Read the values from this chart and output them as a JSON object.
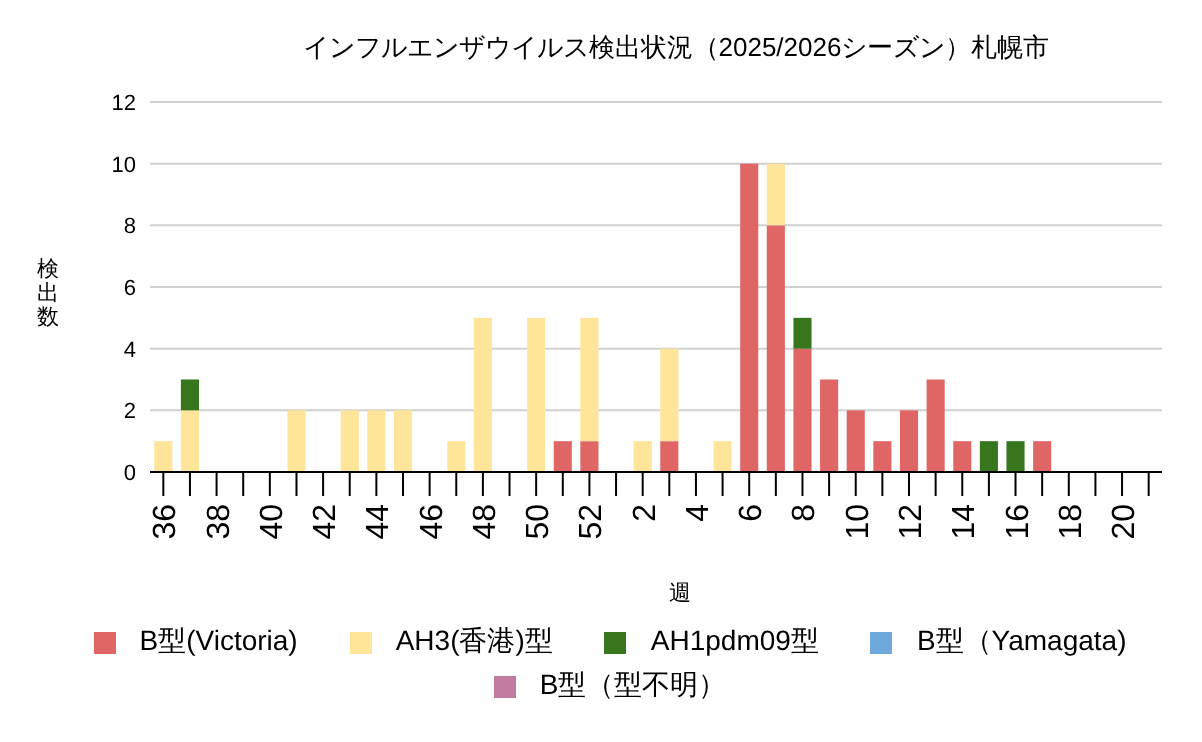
{
  "chart_data": {
    "type": "bar",
    "stacked": true,
    "title": "インフルエンザウイルス検出状況（2025/2026シーズン）札幌市",
    "xlabel": "週",
    "ylabel": "検出数",
    "categories": [
      "36",
      null,
      "38",
      null,
      "40",
      null,
      "42",
      null,
      "44",
      null,
      "46",
      null,
      "48",
      null,
      "50",
      null,
      "52",
      null,
      "2",
      null,
      "4",
      null,
      "6",
      null,
      "8",
      null,
      "10",
      null,
      "12",
      null,
      "14",
      null,
      "16",
      null,
      "18",
      null,
      "20",
      null
    ],
    "ylim": [
      0,
      12
    ],
    "yticks": [
      0,
      2,
      4,
      6,
      8,
      10,
      12
    ],
    "grid": "y",
    "legend": "bottom",
    "series": [
      {
        "name": "B型(Victoria)",
        "color": "#e06666",
        "values": [
          0,
          0,
          0,
          0,
          0,
          0,
          0,
          0,
          0,
          0,
          0,
          0,
          0,
          0,
          0,
          1,
          1,
          0,
          0,
          1,
          0,
          0,
          10,
          8,
          4,
          3,
          2,
          1,
          2,
          3,
          1,
          0,
          0,
          1,
          0,
          0,
          0,
          0
        ]
      },
      {
        "name": "AH3(香港)型",
        "color": "#ffe599",
        "values": [
          1,
          2,
          0,
          0,
          0,
          2,
          0,
          2,
          2,
          2,
          0,
          1,
          5,
          0,
          5,
          0,
          4,
          0,
          1,
          3,
          0,
          1,
          0,
          2,
          0,
          0,
          0,
          0,
          0,
          0,
          0,
          0,
          0,
          0,
          0,
          0,
          0,
          0
        ]
      },
      {
        "name": "AH1pdm09型",
        "color": "#38761d",
        "values": [
          0,
          1,
          0,
          0,
          0,
          0,
          0,
          0,
          0,
          0,
          0,
          0,
          0,
          0,
          0,
          0,
          0,
          0,
          0,
          0,
          0,
          0,
          0,
          0,
          1,
          0,
          0,
          0,
          0,
          0,
          0,
          1,
          1,
          0,
          0,
          0,
          0,
          0
        ]
      },
      {
        "name": "B型（Yamagata)",
        "color": "#6fa8dc",
        "values": [
          0,
          0,
          0,
          0,
          0,
          0,
          0,
          0,
          0,
          0,
          0,
          0,
          0,
          0,
          0,
          0,
          0,
          0,
          0,
          0,
          0,
          0,
          0,
          0,
          0,
          0,
          0,
          0,
          0,
          0,
          0,
          0,
          0,
          0,
          0,
          0,
          0,
          0
        ]
      },
      {
        "name": "B型（型不明）",
        "color": "#c27ba0",
        "values": [
          0,
          0,
          0,
          0,
          0,
          0,
          0,
          0,
          0,
          0,
          0,
          0,
          0,
          0,
          0,
          0,
          0,
          0,
          0,
          0,
          0,
          0,
          0,
          0,
          0,
          0,
          0,
          0,
          0,
          0,
          0,
          0,
          0,
          0,
          0,
          0,
          0,
          0
        ]
      }
    ]
  }
}
